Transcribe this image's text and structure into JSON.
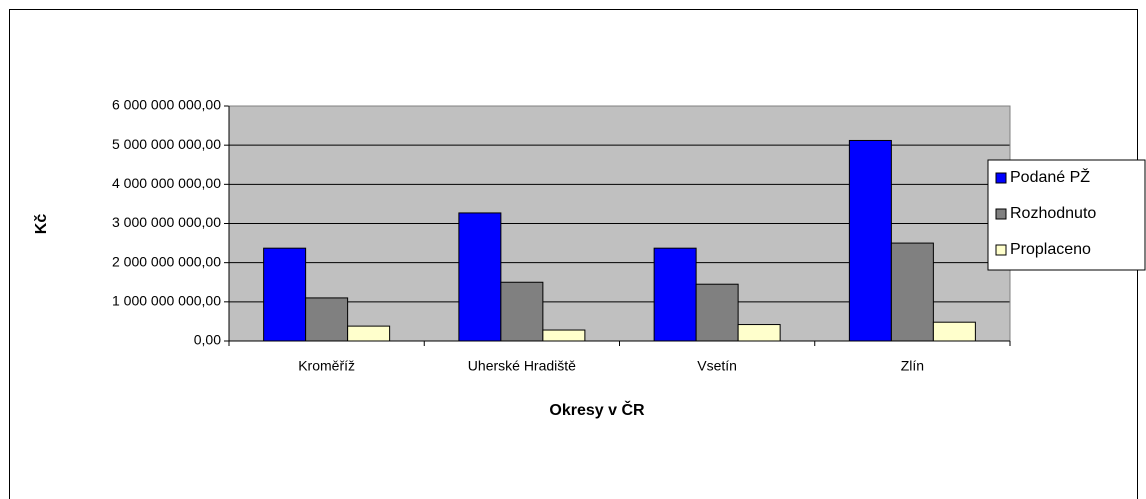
{
  "chart_data": {
    "type": "bar",
    "x_label": "Okresy v ČR",
    "y_label": "Kč",
    "categories": [
      "Kroměříž",
      "Uherské Hradiště",
      "Vsetín",
      "Zlín"
    ],
    "series": [
      {
        "name": "Podané PŽ",
        "color": "#0000ff",
        "values": [
          2370000000,
          3270000000,
          2370000000,
          5120000000
        ]
      },
      {
        "name": "Rozhodnuto",
        "color": "#808080",
        "values": [
          1100000000,
          1500000000,
          1450000000,
          2500000000
        ]
      },
      {
        "name": "Proplaceno",
        "color": "#ffffcc",
        "values": [
          380000000,
          280000000,
          420000000,
          480000000
        ]
      }
    ],
    "ylim": [
      0,
      6000000000
    ],
    "yticks": [
      {
        "value": 0,
        "label": "0,00"
      },
      {
        "value": 1000000000,
        "label": "1 000 000 000,00"
      },
      {
        "value": 2000000000,
        "label": "2 000 000 000,00"
      },
      {
        "value": 3000000000,
        "label": "3 000 000 000,00"
      },
      {
        "value": 4000000000,
        "label": "4 000 000 000,00"
      },
      {
        "value": 5000000000,
        "label": "5 000 000 000,00"
      },
      {
        "value": 6000000000,
        "label": "6 000 000 000,00"
      }
    ],
    "grid": true,
    "legend": "right",
    "plot_background": "#c0c0c0"
  }
}
